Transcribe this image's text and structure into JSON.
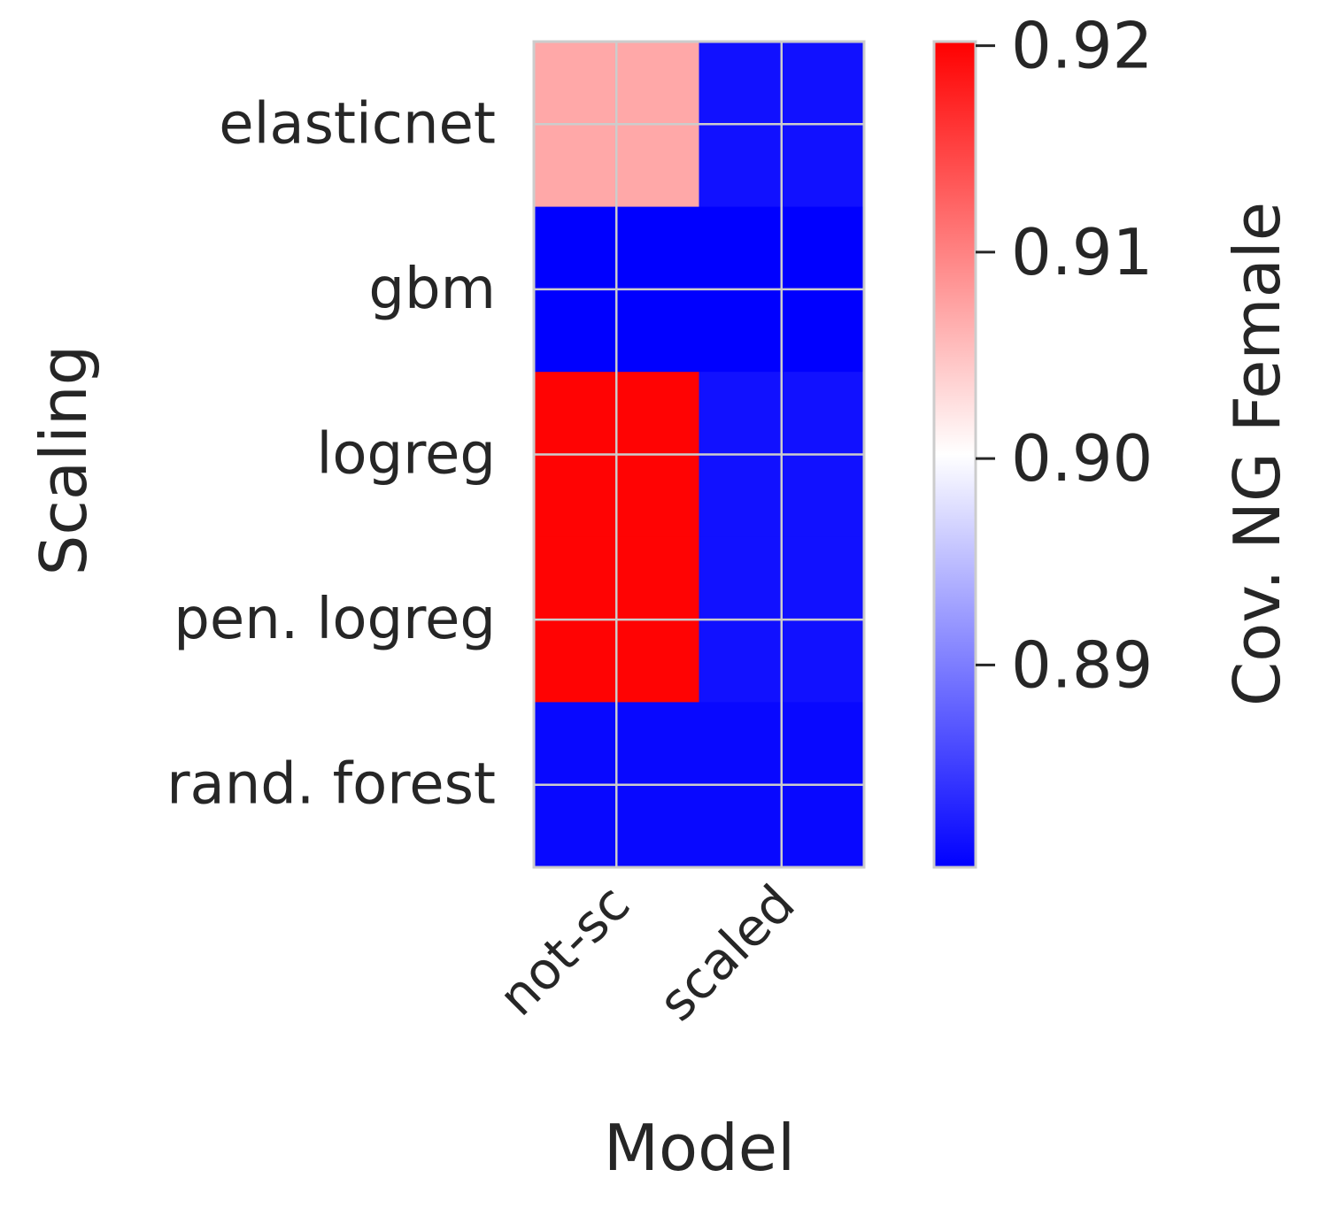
{
  "chart_data": {
    "type": "heatmap",
    "xlabel": "Model",
    "ylabel": "Scaling",
    "x_ticklabels": [
      "not-sc",
      "scaled"
    ],
    "y_ticklabels": [
      "elasticnet",
      "gbm",
      "logreg",
      "pen. logreg",
      "rand. forest"
    ],
    "rows": 10,
    "cols": 4,
    "values": [
      [
        0.907,
        0.907,
        0.8815,
        0.8815
      ],
      [
        0.907,
        0.907,
        0.8815,
        0.8815
      ],
      [
        0.88,
        0.88,
        0.88,
        0.88
      ],
      [
        0.88,
        0.88,
        0.88,
        0.88
      ],
      [
        0.92,
        0.92,
        0.8815,
        0.8815
      ],
      [
        0.92,
        0.92,
        0.8815,
        0.8815
      ],
      [
        0.92,
        0.92,
        0.8815,
        0.8815
      ],
      [
        0.92,
        0.92,
        0.8815,
        0.8815
      ],
      [
        0.8808,
        0.8808,
        0.8808,
        0.8808
      ],
      [
        0.8808,
        0.8808,
        0.8808,
        0.8808
      ]
    ],
    "colorbar": {
      "label": "Cov. NG Female",
      "vmin": 0.8802,
      "vmax": 0.9202,
      "center": 0.9002,
      "ticks": [
        "0.89",
        "0.90",
        "0.91",
        "0.92"
      ],
      "tick_values": [
        0.89,
        0.9,
        0.91,
        0.92
      ],
      "colormap": "bwr",
      "low_color": "#0000ff",
      "mid_color": "#ffffff",
      "high_color": "#ff0000"
    },
    "grid": true,
    "grid_color": "#cccccc"
  }
}
